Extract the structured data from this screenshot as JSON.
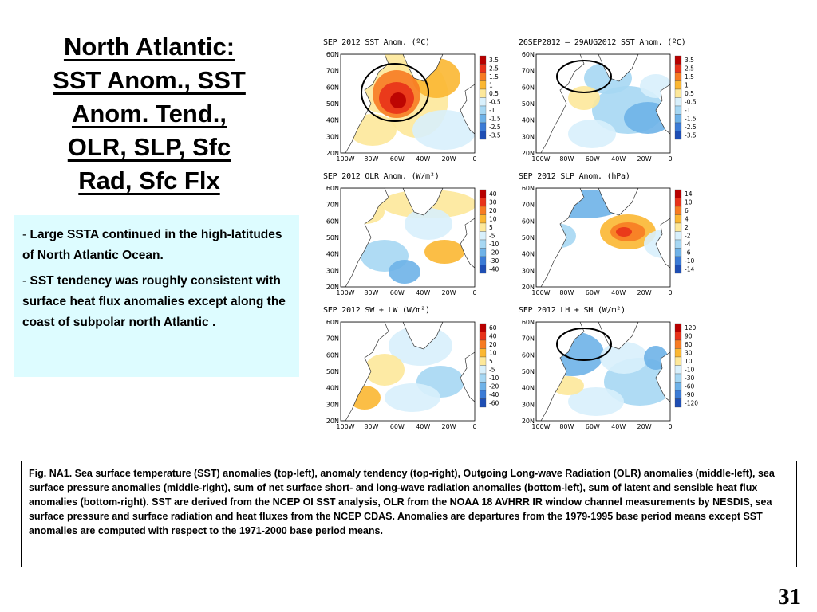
{
  "slide": {
    "title_lines": [
      "North Atlantic:",
      "SST Anom., SST",
      "Anom. Tend.,",
      "OLR, SLP, Sfc",
      "Rad, Sfc Flx"
    ],
    "bullets": [
      {
        "dash": "-",
        "text": " Large SSTA  continued in the high-latitudes of North Atlantic Ocean."
      },
      {
        "dash": "-",
        "text": " SST tendency was  roughly consistent with surface heat flux anomalies except along the coast of subpolar north Atlantic  ."
      }
    ],
    "caption": "Fig. NA1. Sea surface temperature (SST) anomalies (top-left), anomaly tendency (top-right), Outgoing Long-wave Radiation (OLR) anomalies (middle-left), sea surface pressure anomalies (middle-right), sum of net surface short- and long-wave radiation anomalies (bottom-left), sum of latent and sensible heat flux anomalies (bottom-right). SST are derived from the NCEP OI SST analysis, OLR from the NOAA 18 AVHRR IR window channel measurements by NESDIS, sea surface pressure and surface radiation and heat fluxes from the NCEP CDAS. Anomalies are departures from the 1979-1995 base period means except SST anomalies are computed with respect to the 1971-2000 base period means.",
    "page_number": "31"
  },
  "map_axes": {
    "lat_labels": [
      "60N",
      "70N",
      "60N",
      "50N",
      "40N",
      "30N",
      "20N"
    ],
    "lon_labels": [
      "100W",
      "80W",
      "60W",
      "40W",
      "20W",
      "0"
    ]
  },
  "panels": [
    {
      "id": "sst-anom",
      "title": "SEP 2012 SST Anom. (ºC)",
      "legend": [
        "3.5",
        "2.5",
        "1.5",
        "1",
        "0.5",
        "-0.5",
        "-1",
        "-1.5",
        "-2.5",
        "-3.5"
      ],
      "circle": "large"
    },
    {
      "id": "sst-tend",
      "title": "26SEP2012 – 29AUG2012 SST Anom. (ºC)",
      "legend": [
        "3.5",
        "2.5",
        "1.5",
        "1",
        "0.5",
        "-0.5",
        "-1",
        "-1.5",
        "-2.5",
        "-3.5"
      ],
      "circle": "small"
    },
    {
      "id": "olr-anom",
      "title": "SEP 2012 OLR Anom. (W/m²)",
      "legend": [
        "40",
        "30",
        "20",
        "10",
        "5",
        "-5",
        "-10",
        "-20",
        "-30",
        "-40"
      ],
      "circle": "none"
    },
    {
      "id": "slp-anom",
      "title": "SEP 2012 SLP Anom. (hPa)",
      "legend": [
        "14",
        "10",
        "6",
        "4",
        "2",
        "-2",
        "-4",
        "-6",
        "-10",
        "-14"
      ],
      "circle": "none"
    },
    {
      "id": "sw-lw",
      "title": "SEP 2012 SW + LW (W/m²)",
      "legend": [
        "60",
        "40",
        "20",
        "10",
        "5",
        "-5",
        "-10",
        "-20",
        "-40",
        "-60"
      ],
      "circle": "none"
    },
    {
      "id": "lh-sh",
      "title": "SEP 2012 LH + SH (W/m²)",
      "legend": [
        "120",
        "90",
        "60",
        "30",
        "10",
        "-10",
        "-30",
        "-60",
        "-90",
        "-120"
      ],
      "circle": "small"
    }
  ],
  "colors": {
    "legend": [
      "#b80000",
      "#e8321a",
      "#f77b22",
      "#fbb732",
      "#fde89a",
      "#d8f0fc",
      "#a6d7f3",
      "#6eb2e8",
      "#3b7bd6",
      "#1e4eb4"
    ],
    "land": "#ffffff",
    "ocean_neutral": "#ffffff",
    "caption_bg": "#ddfcff"
  }
}
